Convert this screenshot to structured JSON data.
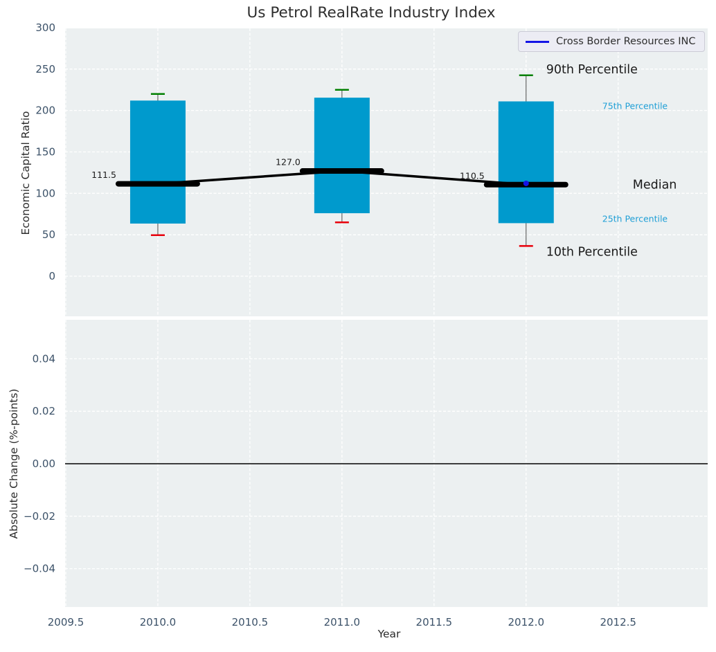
{
  "chart_data": {
    "type": "boxplot",
    "title": "Us Petrol RealRate Industry Index",
    "xlabel": "Year",
    "xlim": [
      2009.5,
      2012.99
    ],
    "xticks": [
      "2009.5",
      "2010.0",
      "2010.5",
      "2011.0",
      "2011.5",
      "2012.0",
      "2012.5"
    ],
    "xtick_values": [
      2009.5,
      2010.0,
      2010.5,
      2011.0,
      2011.5,
      2012.0,
      2012.5
    ],
    "categories": [
      2010,
      2011,
      2012
    ],
    "top_subplot": {
      "ylabel": "Economic Capital Ratio",
      "ylim": [
        -48.5,
        300.8
      ],
      "yticks": [
        "300",
        "250",
        "200",
        "150",
        "100",
        "50",
        "0"
      ],
      "ytick_values": [
        300,
        250,
        200,
        150,
        100,
        50,
        0
      ],
      "grid": "dashed",
      "series": [
        {
          "name": "90th Percentile",
          "values": [
            220,
            225,
            242.5
          ]
        },
        {
          "name": "75th Percentile",
          "values": [
            212,
            215.5,
            211
          ]
        },
        {
          "name": "Median",
          "values": [
            111.5,
            127.0,
            110.5
          ]
        },
        {
          "name": "25th Percentile",
          "values": [
            63.5,
            76,
            64
          ]
        },
        {
          "name": "10th Percentile",
          "values": [
            49.5,
            65,
            36.5
          ]
        }
      ],
      "median_labels": [
        "111.5",
        "127.0",
        "110.5"
      ],
      "company_point": {
        "name": "Cross Border Resources INC",
        "x": 2012,
        "y": 112
      },
      "callouts": [
        "90th Percentile",
        "75th Percentile",
        "Median",
        "25th Percentile",
        "10th Percentile"
      ]
    },
    "bottom_subplot": {
      "ylabel": "Absolute Change (%-points)",
      "ylim": [
        -0.0546,
        0.0549
      ],
      "yticks": [
        "0.04",
        "0.02",
        "0.00",
        "−0.02",
        "−0.04"
      ],
      "ytick_values": [
        0.04,
        0.02,
        0.0,
        -0.02,
        -0.04
      ],
      "zero_line": 0.0
    },
    "legend": {
      "label": "Cross Border Resources INC"
    },
    "legend_position": "upper right",
    "colors": {
      "plot_bg": "#ECF0F1",
      "grid": "#FFFFFF",
      "box_fill": "#009ACD",
      "whisker": "#4A4A4A",
      "cap_90": "#007F00",
      "cap_10": "#E8000B",
      "median_line": "#000000",
      "company": "#1414E6",
      "percentile_label_blue": "#1F9FD6",
      "tick_text": "#3C5269",
      "axis_label_text": "#2B2B2B",
      "title_text": "#2E2E2E",
      "annotation_text": "#1A1A1A",
      "legend_bg": "#ECECF4",
      "legend_border": "#CBCBD6",
      "zero_line": "#000000"
    }
  }
}
